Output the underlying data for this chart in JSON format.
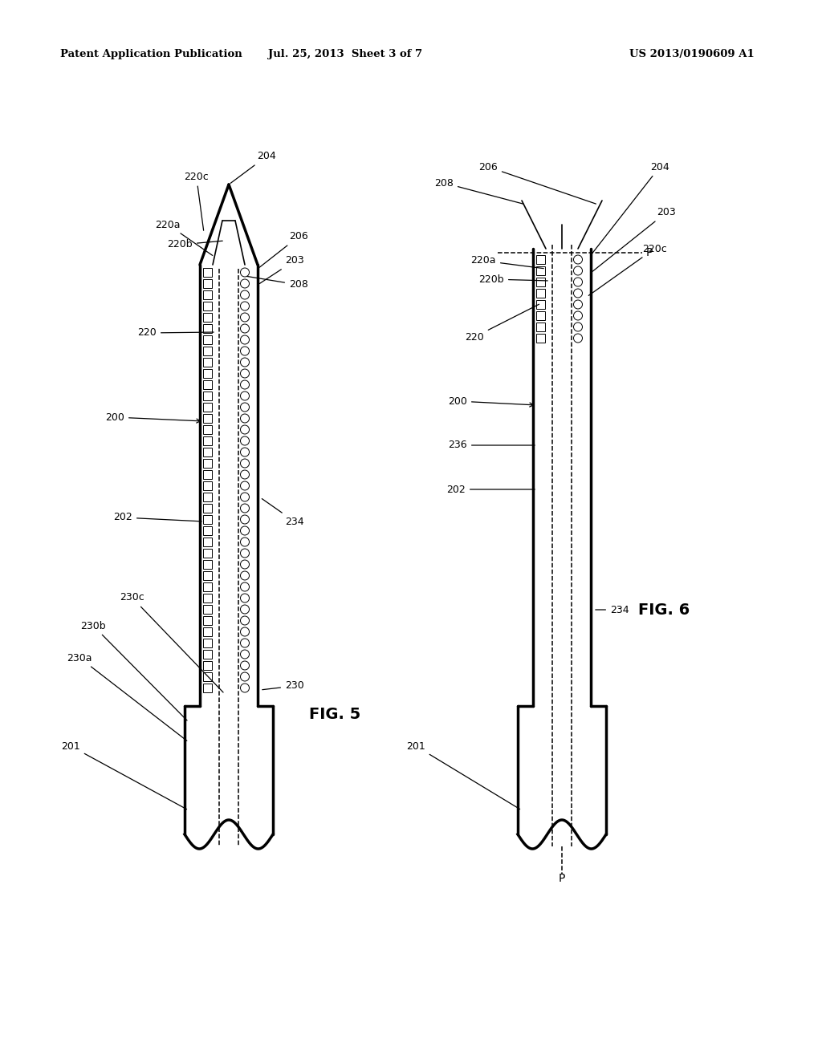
{
  "title_left": "Patent Application Publication",
  "title_center": "Jul. 25, 2013  Sheet 3 of 7",
  "title_right": "US 2013/0190609 A1",
  "fig5_label": "FIG. 5",
  "fig6_label": "FIG. 6",
  "bg_color": "#ffffff",
  "line_color": "#000000"
}
